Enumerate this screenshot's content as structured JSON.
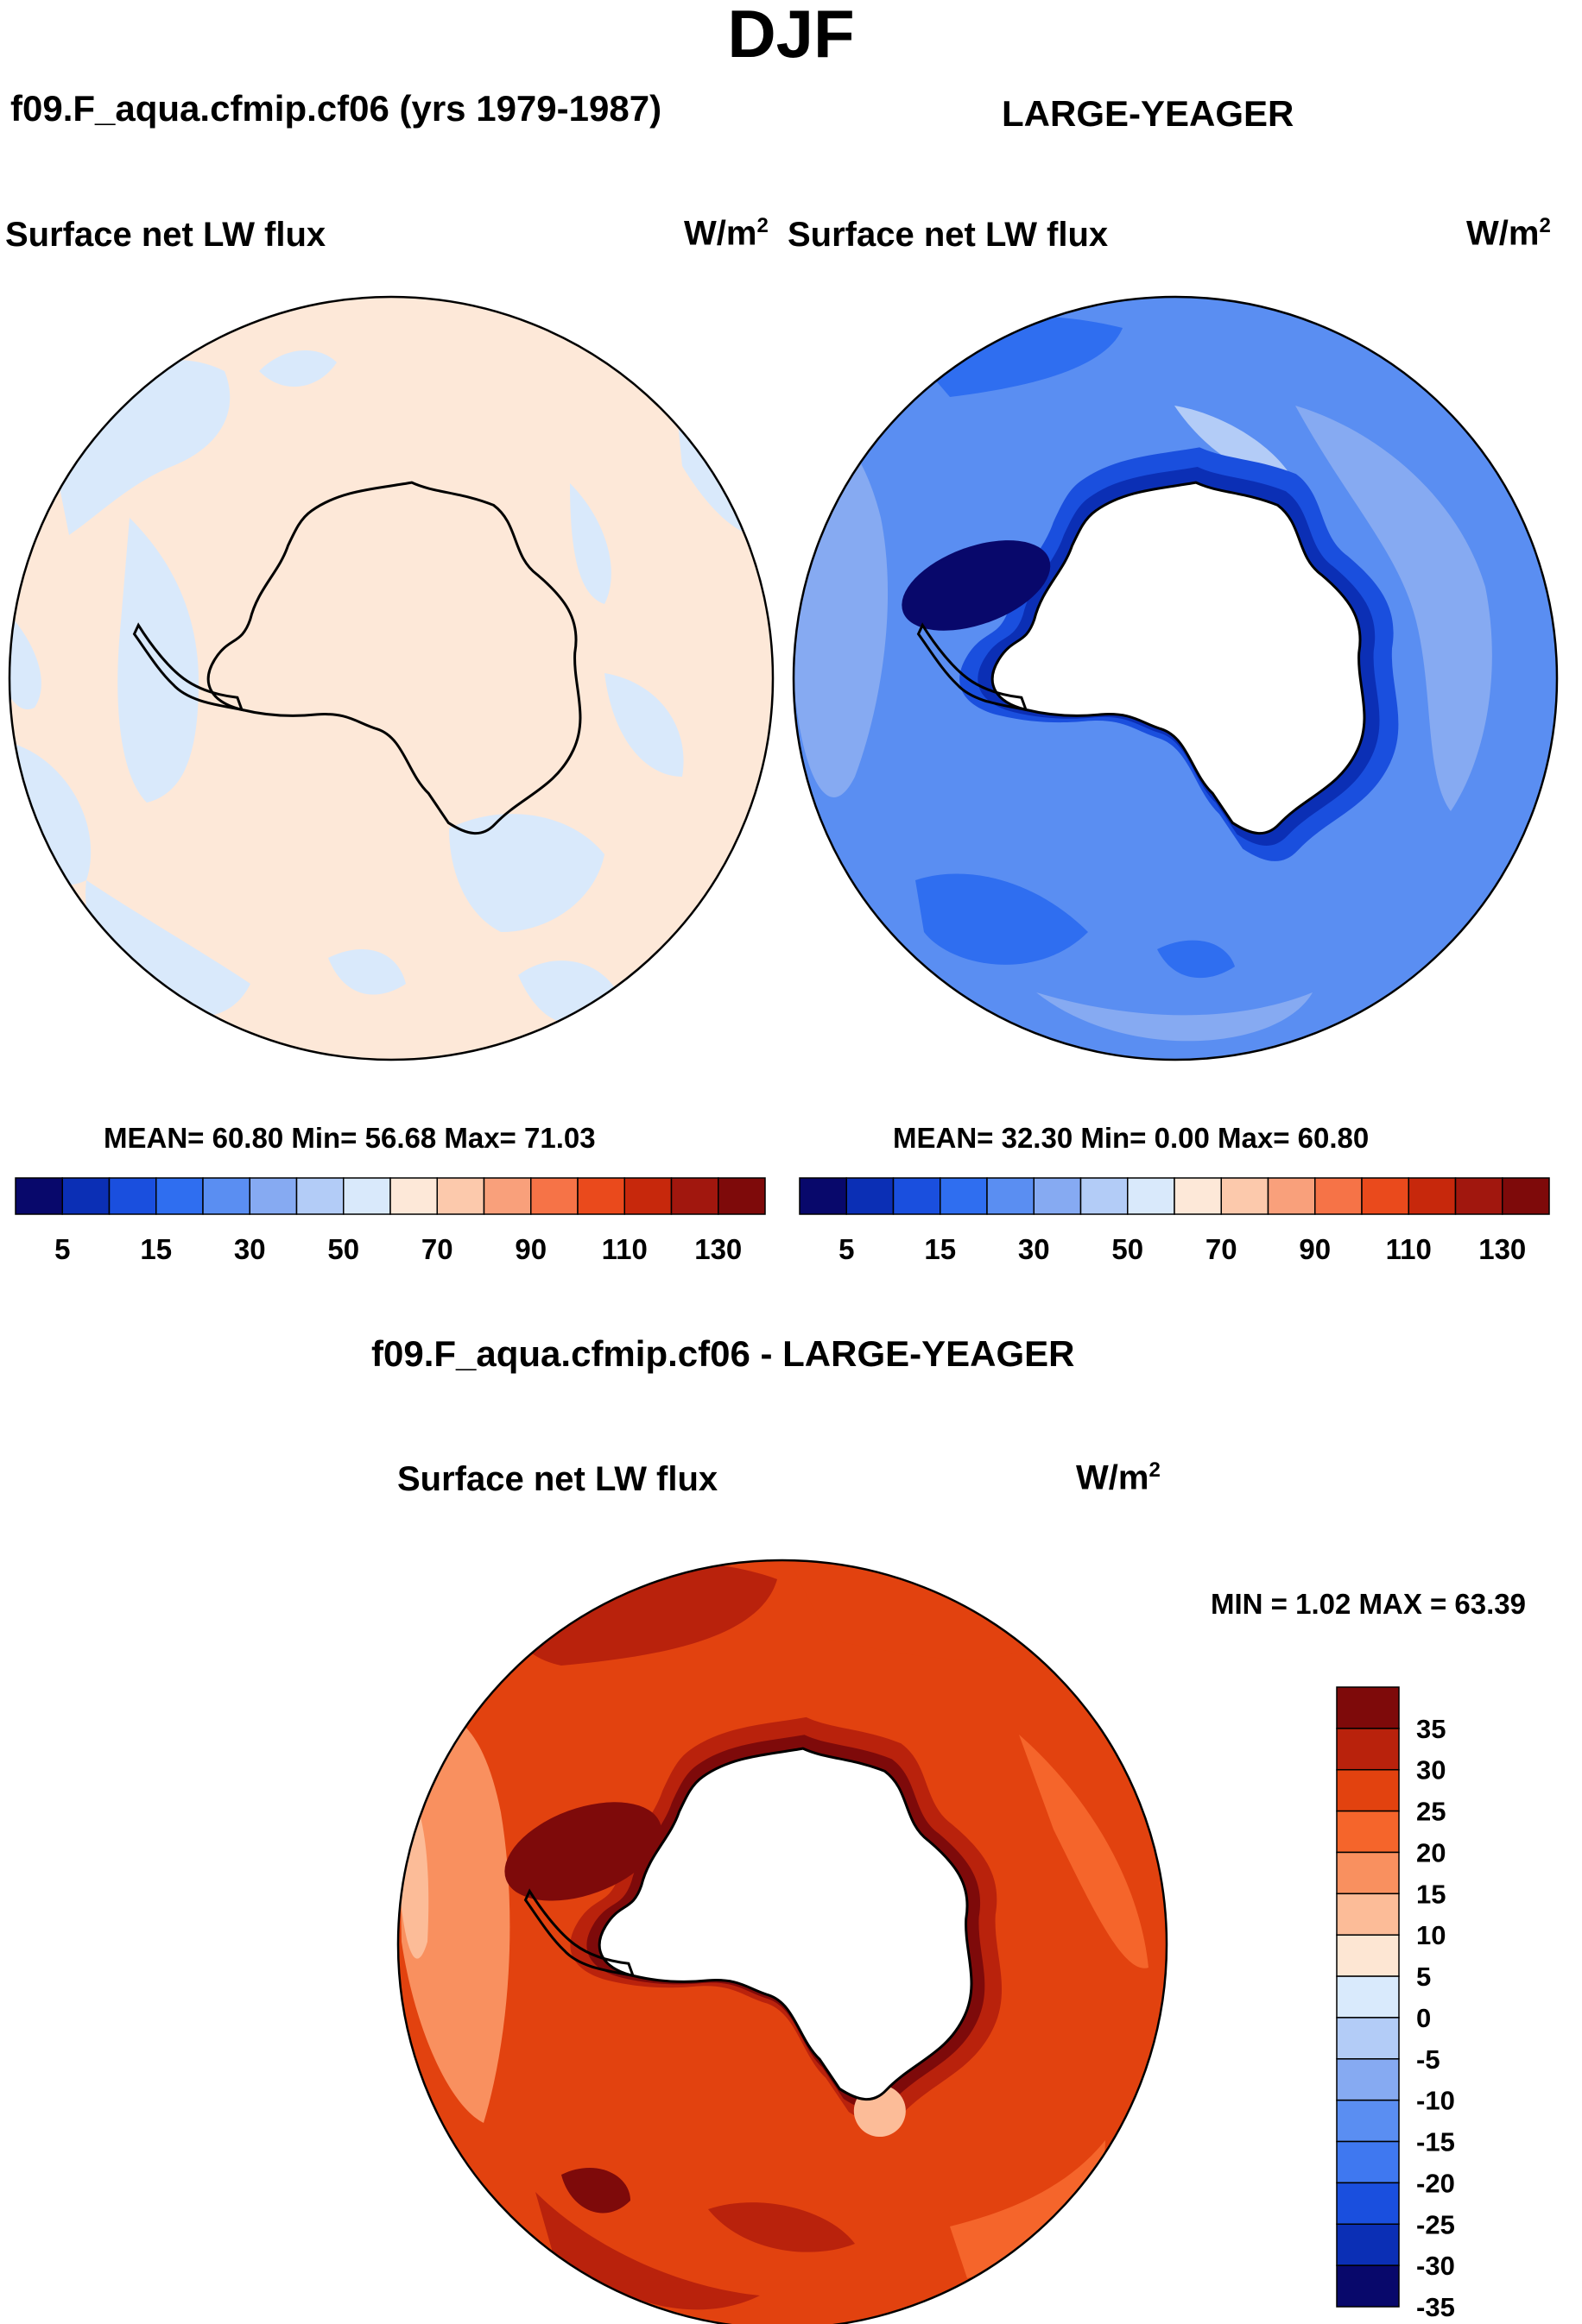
{
  "figure": {
    "title": "DJF",
    "diff_title": "f09.F_aqua.cfmip.cf06 - LARGE-YEAGER"
  },
  "panel_model": {
    "case": "f09.F_aqua.cfmip.cf06 (yrs 1979-1987)",
    "variable": "Surface net LW flux",
    "units_base": "W/m",
    "units_exp": "2",
    "stats": "MEAN=  60.80  Min=  56.68  Max=  71.03"
  },
  "panel_obs": {
    "case": "LARGE-YEAGER",
    "variable": "Surface net LW flux",
    "units_base": "W/m",
    "units_exp": "2",
    "stats": "MEAN=  32.30  Min=   0.00  Max=  60.80"
  },
  "panel_diff": {
    "variable": "Surface net LW flux",
    "units_base": "W/m",
    "units_exp": "2",
    "stats": "MIN =   1.02 MAX =  63.39"
  },
  "colorbar_top": {
    "colors": [
      "#08086b",
      "#0b2fb5",
      "#1a4fde",
      "#2f6ef0",
      "#5a8ef2",
      "#86aaf2",
      "#b3ccf7",
      "#d9e9fb",
      "#fde8d8",
      "#fcc9ac",
      "#f9a07b",
      "#f67347",
      "#ea4a1c",
      "#c7280c",
      "#a1170e",
      "#7e0a0a"
    ],
    "tick_labels": [
      "5",
      "15",
      "30",
      "50",
      "70",
      "90",
      "110",
      "130"
    ]
  },
  "colorbar_diff": {
    "colors": [
      "#7e0a0a",
      "#b9220c",
      "#e2420f",
      "#f5652b",
      "#f9905f",
      "#fcbc98",
      "#fde6d3",
      "#d9eafc",
      "#b3ccf7",
      "#86aaf2",
      "#5a8ef2",
      "#3f78f0",
      "#1a4fde",
      "#0b2fb5",
      "#08086b"
    ],
    "tick_labels": [
      "35",
      "30",
      "25",
      "20",
      "15",
      "10",
      "5",
      "0",
      "-5",
      "-10",
      "-15",
      "-20",
      "-25",
      "-30",
      "-35"
    ]
  },
  "chart_data": {
    "type": "map",
    "projection": "south polar stereographic",
    "season": "DJF",
    "panels": [
      {
        "name": "f09.F_aqua.cfmip.cf06 (yrs 1979-1987)",
        "variable": "Surface net LW flux",
        "units": "W/m2",
        "mean": 60.8,
        "min": 56.68,
        "max": 71.03
      },
      {
        "name": "LARGE-YEAGER",
        "variable": "Surface net LW flux",
        "units": "W/m2",
        "mean": 32.3,
        "min": 0.0,
        "max": 60.8
      },
      {
        "name": "f09.F_aqua.cfmip.cf06 - LARGE-YEAGER",
        "variable": "Surface net LW flux",
        "units": "W/m2",
        "min": 1.02,
        "max": 63.39
      }
    ],
    "contour_levels_abs": [
      5,
      10,
      15,
      20,
      30,
      40,
      50,
      60,
      70,
      80,
      90,
      100,
      110,
      120,
      130
    ],
    "contour_levels_diff": [
      35,
      30,
      25,
      20,
      15,
      10,
      5,
      0,
      -5,
      -10,
      -15,
      -20,
      -25,
      -30,
      -35
    ]
  }
}
